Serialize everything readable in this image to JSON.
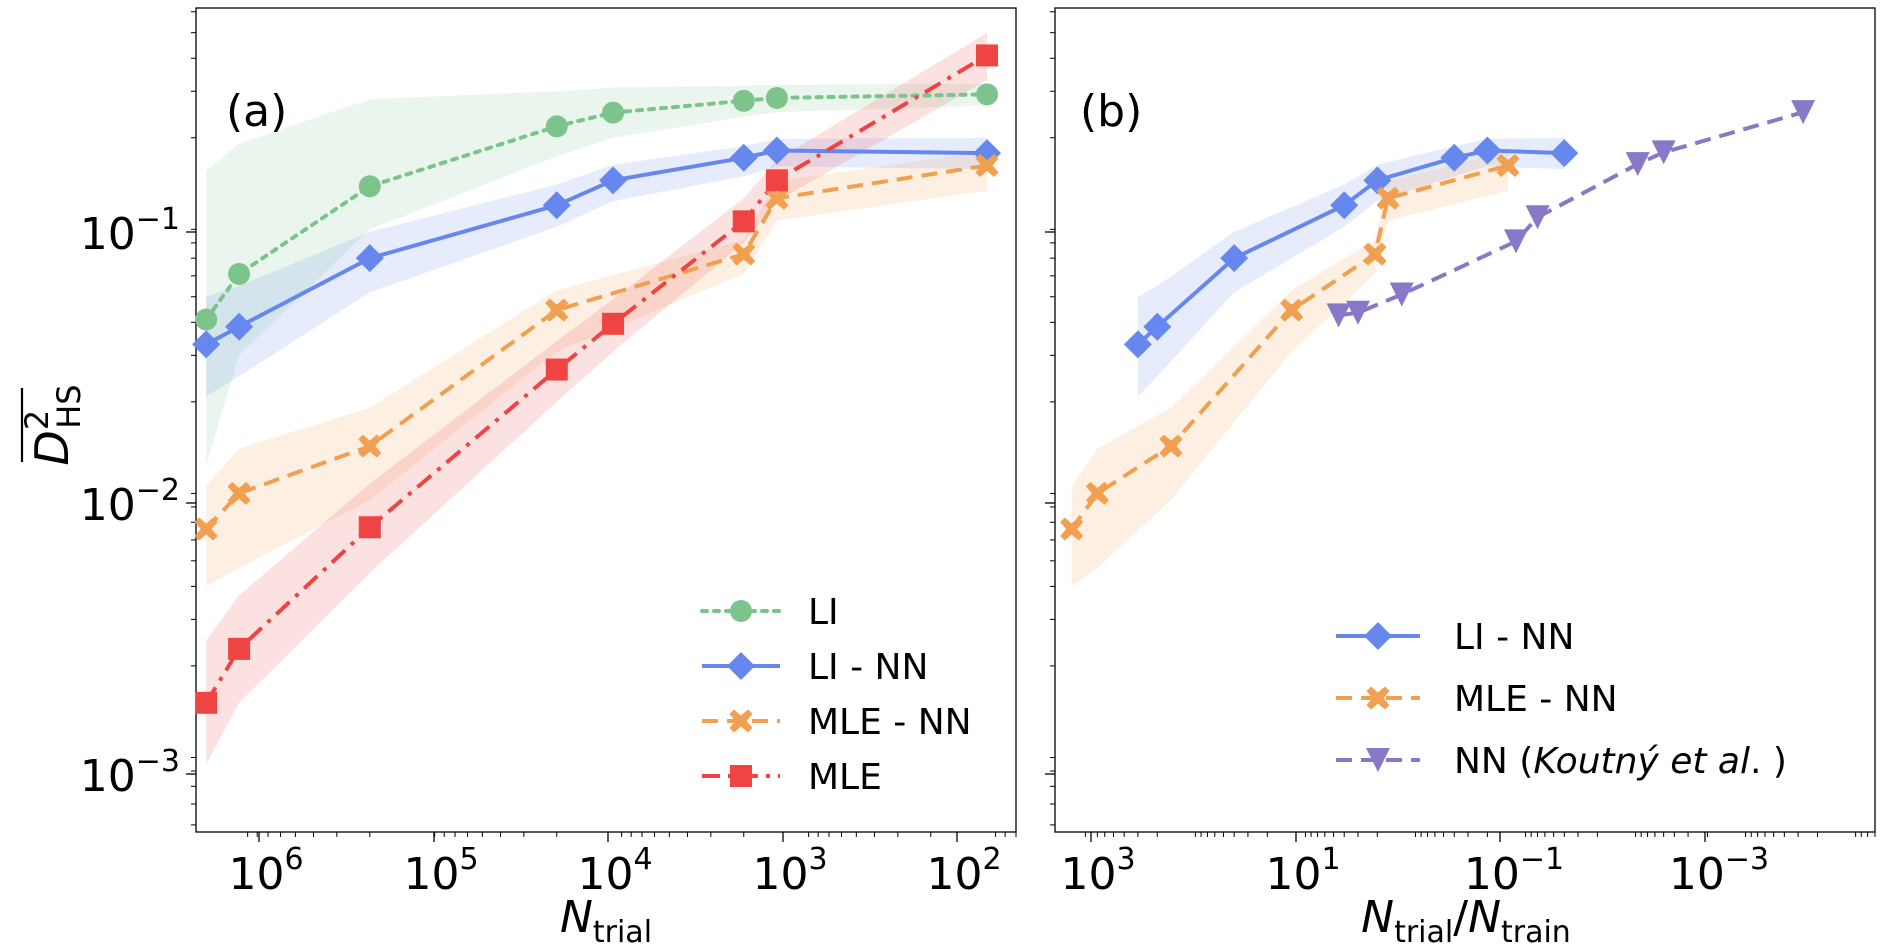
{
  "colors": {
    "LI": "#7cc48c",
    "LI - NN": "#6688ee",
    "MLE - NN": "#f0a050",
    "MLE": "#ee4444",
    "NN (Koutný et al.)": "#8878c8"
  },
  "chart_data": [
    {
      "type": "line",
      "panel_label": "(a)",
      "xlabel": {
        "main": "N",
        "sub": "trial"
      },
      "ylabel": {
        "main": "D",
        "sup": "2",
        "sub": "HS"
      },
      "x_scale": "log",
      "x_reversed": true,
      "y_scale": "log",
      "xlim": [
        1700000,
        70
      ],
      "ylim": [
        0.00047,
        0.62
      ],
      "xticks": [
        {
          "value": 1000000,
          "base": "10",
          "exp": "6"
        },
        {
          "value": 100000,
          "base": "10",
          "exp": "5"
        },
        {
          "value": 10000,
          "base": "10",
          "exp": "4"
        },
        {
          "value": 1000,
          "base": "10",
          "exp": "3"
        },
        {
          "value": 100,
          "base": "10",
          "exp": "2"
        }
      ],
      "yticks": [
        {
          "value": 0.1,
          "base": "10",
          "exp": "−1"
        },
        {
          "value": 0.01,
          "base": "10",
          "exp": "−2"
        },
        {
          "value": 0.001,
          "base": "10",
          "exp": "−3"
        }
      ],
      "legend_position": "lower-right",
      "series": [
        {
          "name": "LI",
          "label": "LI",
          "dash": "dotted",
          "marker": "circle",
          "x": [
            1500000,
            1000000,
            200000,
            20000,
            10000,
            2000,
            1330,
            100
          ],
          "y": [
            0.041,
            0.061,
            0.131,
            0.221,
            0.249,
            0.276,
            0.283,
            0.292
          ],
          "band_low": [
            0.0115,
            0.03,
            0.09,
            0.17,
            0.2,
            0.24,
            0.25,
            0.265
          ],
          "band_high": [
            0.15,
            0.19,
            0.28,
            0.3,
            0.31,
            0.315,
            0.318,
            0.32
          ]
        },
        {
          "name": "LI - NN",
          "label": "LI - NN",
          "dash": "solid",
          "marker": "diamond",
          "x": [
            1500000,
            1000000,
            200000,
            20000,
            10000,
            2000,
            1330,
            100
          ],
          "y": [
            0.033,
            0.0385,
            0.07,
            0.111,
            0.138,
            0.168,
            0.179,
            0.175
          ],
          "band_low": [
            0.021,
            0.025,
            0.052,
            0.092,
            0.115,
            0.143,
            0.156,
            0.152
          ],
          "band_high": [
            0.05,
            0.055,
            0.088,
            0.133,
            0.158,
            0.186,
            0.198,
            0.2
          ]
        },
        {
          "name": "MLE - NN",
          "label": "MLE - NN",
          "dash": "dashed",
          "marker": "x",
          "x": [
            1500000,
            1000000,
            200000,
            20000,
            2000,
            1330,
            100
          ],
          "y": [
            0.0066,
            0.009,
            0.0136,
            0.0445,
            0.0725,
            0.118,
            0.157
          ],
          "band_low": [
            0.004,
            0.0047,
            0.0085,
            0.031,
            0.061,
            0.097,
            0.126
          ],
          "band_high": [
            0.0096,
            0.0133,
            0.019,
            0.053,
            0.082,
            0.137,
            0.178
          ]
        },
        {
          "name": "MLE",
          "label": "MLE",
          "dash": "dashdot",
          "marker": "square",
          "x": [
            1500000,
            1000000,
            200000,
            20000,
            10000,
            2000,
            1330,
            100
          ],
          "y": [
            0.00145,
            0.00232,
            0.0067,
            0.0265,
            0.0395,
            0.0965,
            0.138,
            0.41
          ],
          "band_low": [
            0.00085,
            0.00145,
            0.0045,
            0.02,
            0.031,
            0.08,
            0.115,
            0.33
          ],
          "band_high": [
            0.0025,
            0.0037,
            0.0098,
            0.034,
            0.049,
            0.118,
            0.165,
            0.5
          ]
        }
      ]
    },
    {
      "type": "line",
      "panel_label": "(b)",
      "xlabel": {
        "main": "N",
        "sub1": "trial",
        "slash": "/",
        "main2": "N",
        "sub2": "train"
      },
      "x_scale": "log",
      "x_reversed": true,
      "y_scale": "log",
      "xlim": [
        1700,
        6e-05
      ],
      "ylim": [
        0.00047,
        0.62
      ],
      "xticks": [
        {
          "value": 1000,
          "base": "10",
          "exp": "3"
        },
        {
          "value": 10,
          "base": "10",
          "exp": "1"
        },
        {
          "value": 0.1,
          "base": "10",
          "exp": "−1"
        },
        {
          "value": 0.001,
          "base": "10",
          "exp": "−3"
        }
      ],
      "yticks": [
        {
          "value": 0.1
        },
        {
          "value": 0.01
        },
        {
          "value": 0.001
        }
      ],
      "legend_position": "lower-right",
      "series": [
        {
          "name": "LI - NN",
          "label": "LI - NN",
          "dash": "solid",
          "marker": "diamond",
          "x": [
            300,
            200,
            40,
            4,
            2,
            0.4,
            0.2,
            0.04
          ],
          "y": [
            0.033,
            0.0385,
            0.07,
            0.111,
            0.138,
            0.168,
            0.179,
            0.175
          ],
          "band_low": [
            0.021,
            0.025,
            0.052,
            0.092,
            0.115,
            0.143,
            0.156,
            0.152
          ],
          "band_high": [
            0.05,
            0.055,
            0.088,
            0.133,
            0.158,
            0.186,
            0.198,
            0.2
          ]
        },
        {
          "name": "MLE - NN",
          "label": "MLE - NN",
          "dash": "dashed",
          "marker": "x",
          "x": [
            1200,
            700,
            150,
            12,
            2.1,
            1.6,
            0.13
          ],
          "y": [
            0.0066,
            0.009,
            0.0136,
            0.0445,
            0.0725,
            0.118,
            0.157
          ],
          "band_low": [
            0.004,
            0.0047,
            0.0085,
            0.031,
            0.061,
            0.097,
            0.126
          ],
          "band_high": [
            0.0096,
            0.0133,
            0.019,
            0.053,
            0.082,
            0.137,
            0.178
          ]
        },
        {
          "name": "NN (Koutný et al.)",
          "label_prefix": "NN (",
          "label_italic": "Koutný et al",
          "label_suffix": ". )",
          "dash": "dashed",
          "marker": "triangle-down",
          "x": [
            4.5,
            3,
            1.2,
            0.11,
            0.07,
            0.0086,
            0.005,
            0.00027
          ],
          "y": [
            0.0425,
            0.0435,
            0.051,
            0.081,
            0.1,
            0.159,
            0.176,
            0.25
          ]
        }
      ]
    }
  ]
}
